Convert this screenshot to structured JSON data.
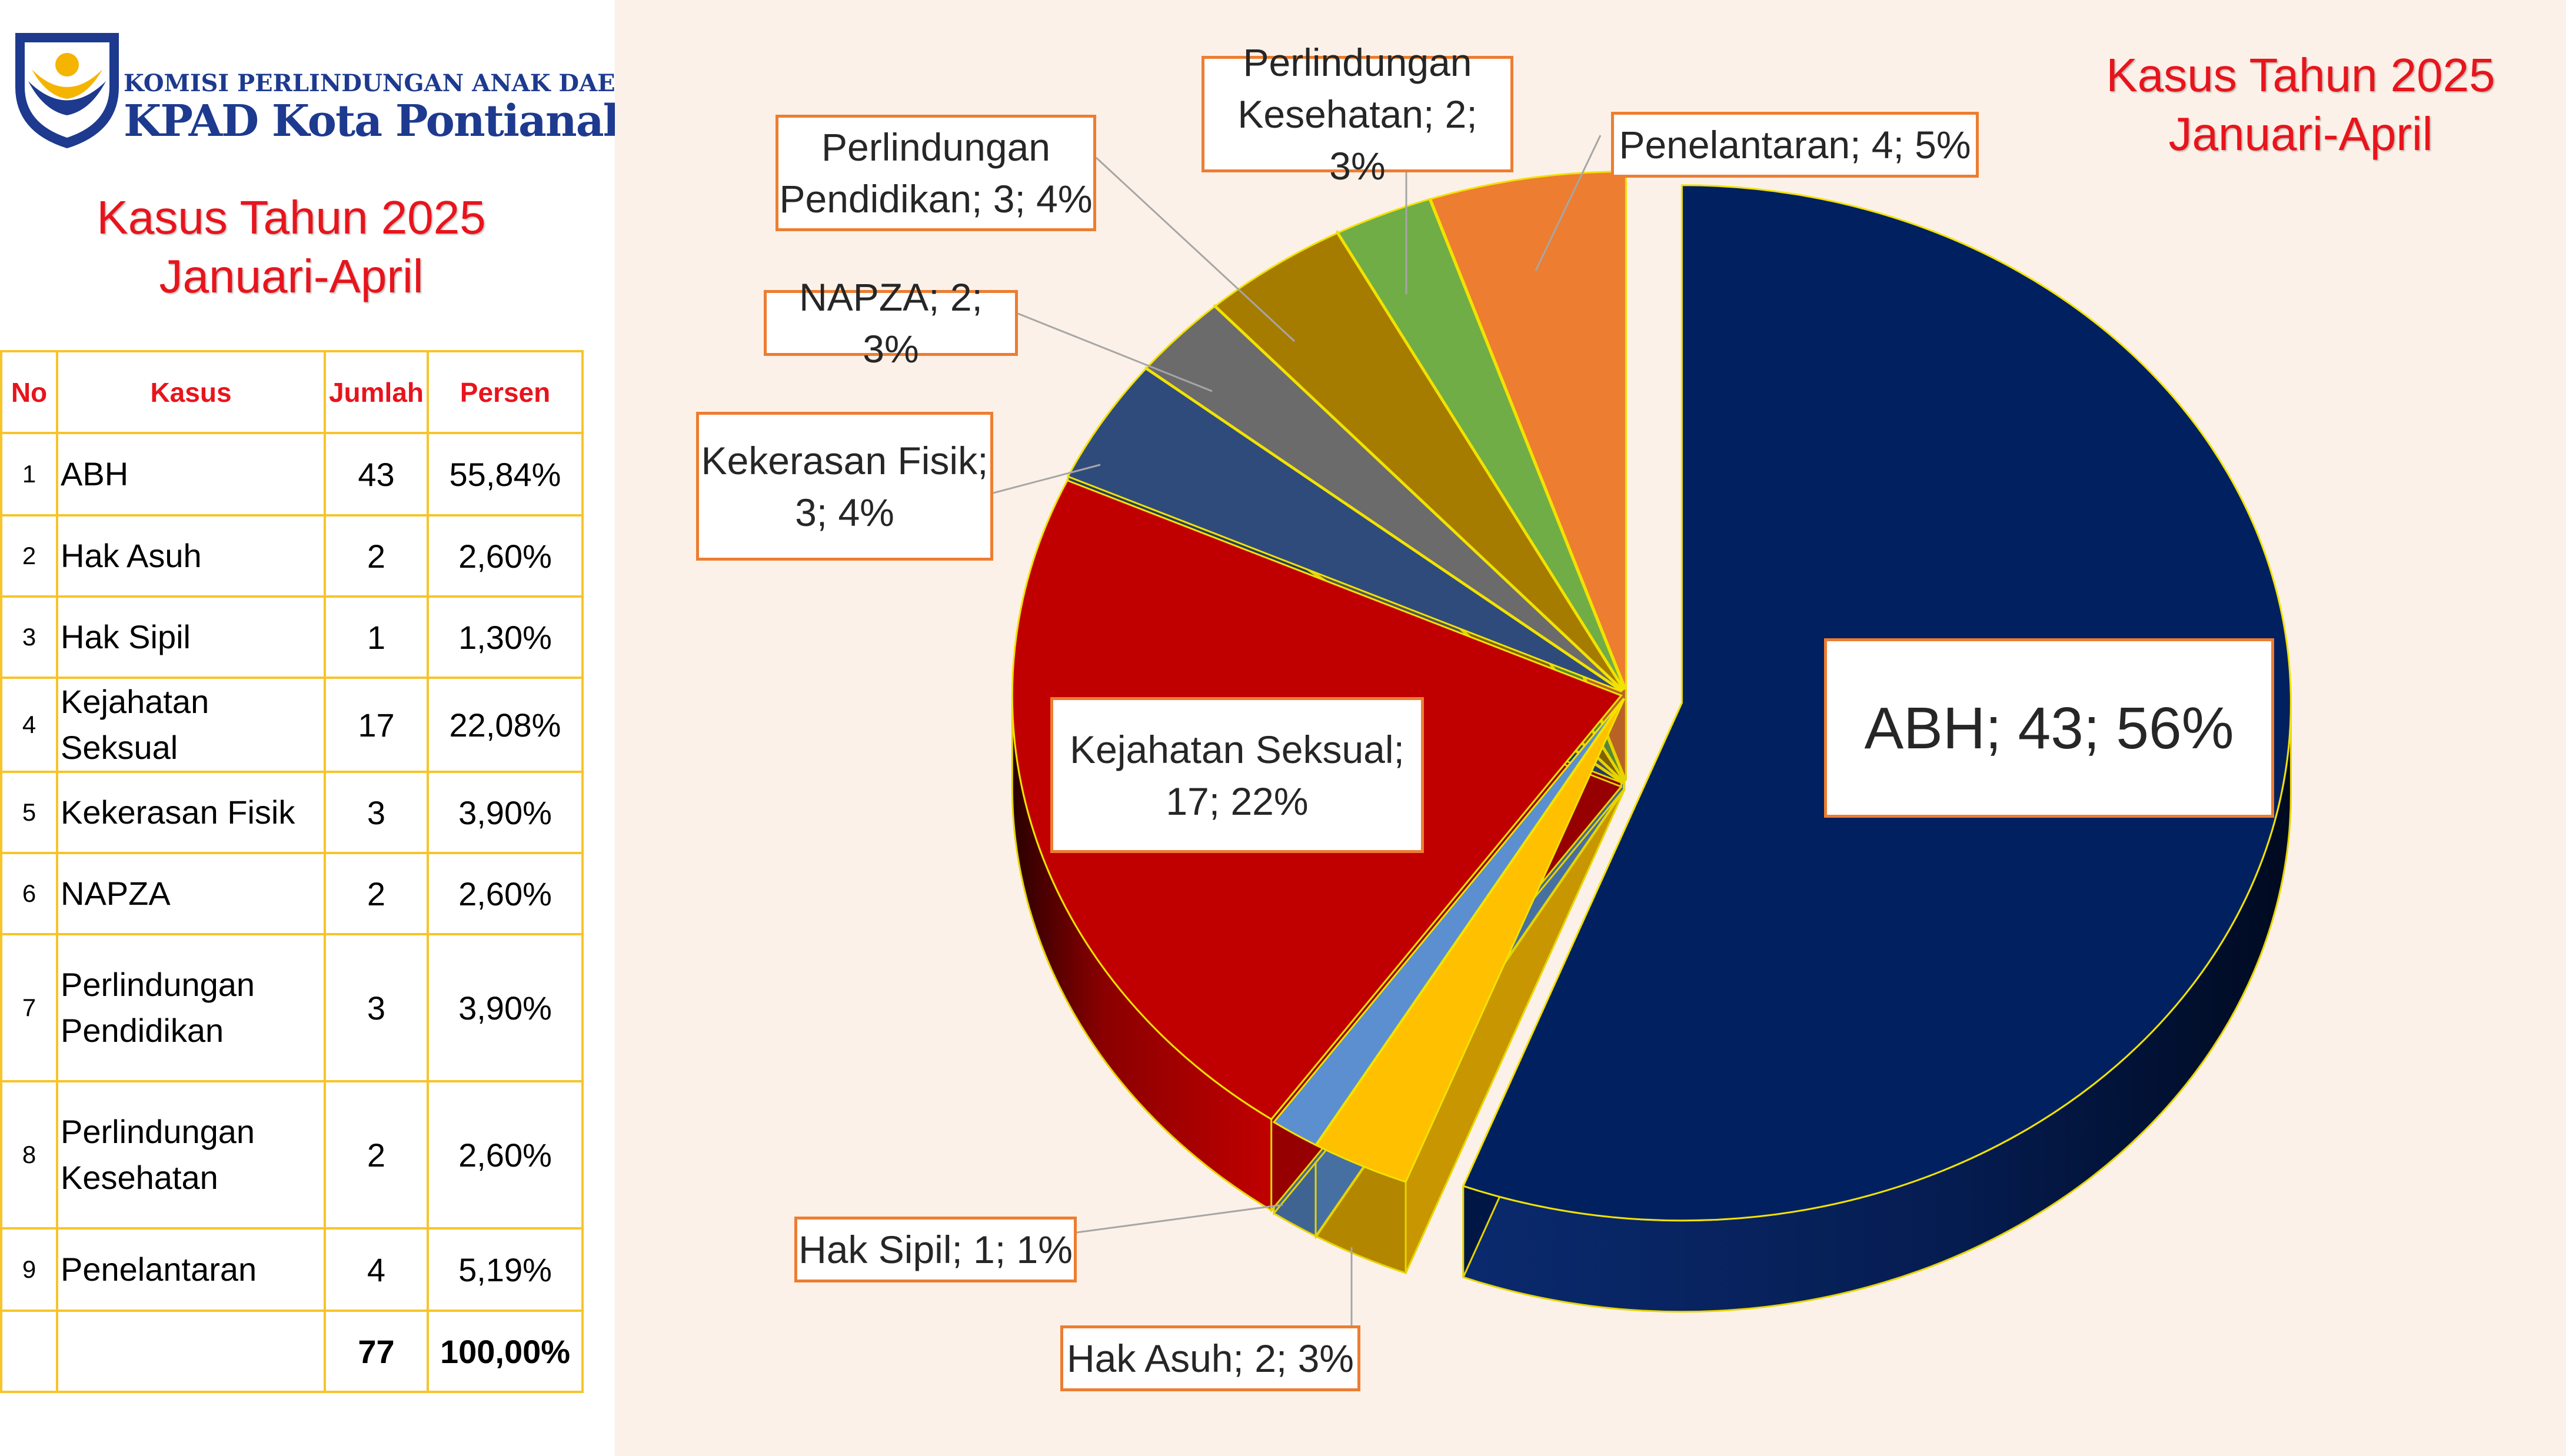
{
  "logo": {
    "line1": "KOMISI PERLINDUNGAN ANAK DAERAH",
    "line2": "KPAD Kota Pontianak"
  },
  "left_title": [
    "Kasus Tahun 2025",
    "Januari-April"
  ],
  "chart_title": [
    "Kasus Tahun 2025",
    "Januari-April"
  ],
  "table": {
    "headers": [
      "No",
      "Kasus",
      "Jumlah",
      "Persen"
    ],
    "rows": [
      {
        "no": "1",
        "kasus": "ABH",
        "jumlah": "43",
        "persen": "55,84%"
      },
      {
        "no": "2",
        "kasus": "Hak Asuh",
        "jumlah": "2",
        "persen": "2,60%"
      },
      {
        "no": "3",
        "kasus": "Hak Sipil",
        "jumlah": "1",
        "persen": "1,30%"
      },
      {
        "no": "4",
        "kasus": "Kejahatan Seksual",
        "jumlah": "17",
        "persen": "22,08%"
      },
      {
        "no": "5",
        "kasus": "Kekerasan Fisik",
        "jumlah": "3",
        "persen": "3,90%"
      },
      {
        "no": "6",
        "kasus": "NAPZA",
        "jumlah": "2",
        "persen": "2,60%"
      },
      {
        "no": "7",
        "kasus": "Perlindungan Pendidikan",
        "jumlah": "3",
        "persen": "3,90%"
      },
      {
        "no": "8",
        "kasus": "Perlindungan Kesehatan",
        "jumlah": "2",
        "persen": "2,60%"
      },
      {
        "no": "9",
        "kasus": "Penelantaran",
        "jumlah": "4",
        "persen": "5,19%"
      }
    ],
    "total": {
      "jumlah": "77",
      "persen": "100,00%"
    }
  },
  "chart_data": {
    "type": "pie",
    "title": "Kasus Tahun 2025 Januari-April",
    "slices": [
      {
        "name": "ABH",
        "value": 43,
        "percent": 56,
        "label": "ABH; 43; 56%",
        "color": "#002060"
      },
      {
        "name": "Hak Asuh",
        "value": 2,
        "percent": 3,
        "label": "Hak Asuh; 2; 3%",
        "color": "#ffc000"
      },
      {
        "name": "Hak Sipil",
        "value": 1,
        "percent": 1,
        "label": "Hak Sipil; 1; 1%",
        "color": "#5b8fd0"
      },
      {
        "name": "Kejahatan Seksual",
        "value": 17,
        "percent": 22,
        "label": "Kejahatan Seksual; 17; 22%",
        "color": "#c00000"
      },
      {
        "name": "Kekerasan Fisik",
        "value": 3,
        "percent": 4,
        "label": "Kekerasan Fisik; 3; 4%",
        "color": "#2f4b7c"
      },
      {
        "name": "NAPZA",
        "value": 2,
        "percent": 3,
        "label": "NAPZA; 2; 3%",
        "color": "#6b6b6b"
      },
      {
        "name": "Perlindungan Pendidikan",
        "value": 3,
        "percent": 4,
        "label": "Perlindungan Pendidikan; 3; 4%",
        "color": "#a67c00"
      },
      {
        "name": "Perlindungan Kesehatan",
        "value": 2,
        "percent": 3,
        "label": "Perlindungan Kesehatan; 2; 3%",
        "color": "#70ad47"
      },
      {
        "name": "Penelantaran",
        "value": 4,
        "percent": 5,
        "label": "Penelantaran; 4; 5%",
        "color": "#ed7d31"
      }
    ],
    "style": "3d-exploded"
  }
}
